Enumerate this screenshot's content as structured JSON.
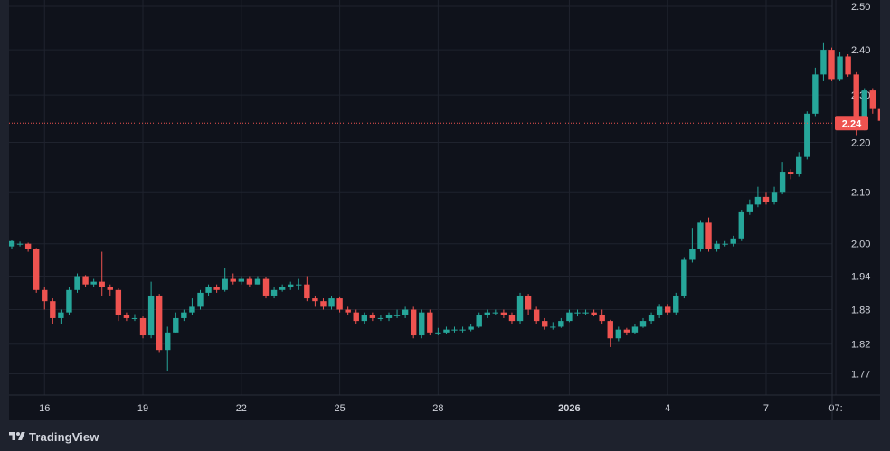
{
  "footer": {
    "brand": "TradingView",
    "logo_icon": "tradingview-logo-icon"
  },
  "colors": {
    "background": "#0f121b",
    "grid": "#1f232e",
    "up": "#26a69a",
    "down": "#ef5350",
    "text": "#d1d4dc",
    "price_line": "#ef5350"
  },
  "chart_data": {
    "type": "candlestick",
    "title": "",
    "last_price": 2.24,
    "last_price_label": "2.24",
    "y_scale": "log",
    "ylim": [
      1.735,
      2.515
    ],
    "y_ticks": [
      {
        "value": 2.5,
        "label": "2.50"
      },
      {
        "value": 2.4,
        "label": "2.40"
      },
      {
        "value": 2.3,
        "label": "2.30"
      },
      {
        "value": 2.2,
        "label": "2.20"
      },
      {
        "value": 2.1,
        "label": "2.10"
      },
      {
        "value": 2.0,
        "label": "2.00"
      },
      {
        "value": 1.94,
        "label": "1.94"
      },
      {
        "value": 1.88,
        "label": "1.88"
      },
      {
        "value": 1.82,
        "label": "1.82"
      },
      {
        "value": 1.77,
        "label": "1.77"
      }
    ],
    "x_ticks": [
      {
        "index": 4,
        "label": "16",
        "bold": false
      },
      {
        "index": 16,
        "label": "19",
        "bold": false
      },
      {
        "index": 28,
        "label": "22",
        "bold": false
      },
      {
        "index": 40,
        "label": "25",
        "bold": false
      },
      {
        "index": 52,
        "label": "28",
        "bold": false
      },
      {
        "index": 68,
        "label": "2026",
        "bold": true
      },
      {
        "index": 80,
        "label": "4",
        "bold": false
      },
      {
        "index": 92,
        "label": "7",
        "bold": false
      },
      {
        "index": 100.5,
        "label": "07:",
        "bold": false
      }
    ],
    "grid": true,
    "candles": [
      [
        1.995,
        2.005,
        2.008,
        1.99
      ],
      [
        2.0,
        2.0,
        2.004,
        1.995
      ],
      [
        2.0,
        1.99,
        2.002,
        1.985
      ],
      [
        1.99,
        1.915,
        1.992,
        1.91
      ],
      [
        1.915,
        1.895,
        1.92,
        1.88
      ],
      [
        1.895,
        1.865,
        1.9,
        1.855
      ],
      [
        1.865,
        1.875,
        1.88,
        1.855
      ],
      [
        1.875,
        1.915,
        1.92,
        1.87
      ],
      [
        1.915,
        1.94,
        1.945,
        1.91
      ],
      [
        1.94,
        1.925,
        1.942,
        1.92
      ],
      [
        1.925,
        1.93,
        1.935,
        1.92
      ],
      [
        1.93,
        1.92,
        1.985,
        1.905
      ],
      [
        1.92,
        1.915,
        1.925,
        1.905
      ],
      [
        1.915,
        1.87,
        1.918,
        1.86
      ],
      [
        1.87,
        1.865,
        1.875,
        1.86
      ],
      [
        1.865,
        1.865,
        1.872,
        1.86
      ],
      [
        1.865,
        1.835,
        1.868,
        1.83
      ],
      [
        1.835,
        1.905,
        1.93,
        1.83
      ],
      [
        1.905,
        1.81,
        1.908,
        1.805
      ],
      [
        1.81,
        1.84,
        1.85,
        1.775
      ],
      [
        1.84,
        1.865,
        1.875,
        1.84
      ],
      [
        1.865,
        1.875,
        1.88,
        1.86
      ],
      [
        1.875,
        1.885,
        1.9,
        1.87
      ],
      [
        1.885,
        1.91,
        1.915,
        1.88
      ],
      [
        1.91,
        1.92,
        1.925,
        1.905
      ],
      [
        1.92,
        1.915,
        1.925,
        1.91
      ],
      [
        1.915,
        1.935,
        1.955,
        1.912
      ],
      [
        1.935,
        1.93,
        1.945,
        1.925
      ],
      [
        1.93,
        1.935,
        1.94,
        1.925
      ],
      [
        1.935,
        1.925,
        1.94,
        1.92
      ],
      [
        1.925,
        1.935,
        1.94,
        1.925
      ],
      [
        1.935,
        1.905,
        1.938,
        1.9
      ],
      [
        1.905,
        1.915,
        1.92,
        1.9
      ],
      [
        1.915,
        1.92,
        1.925,
        1.912
      ],
      [
        1.92,
        1.925,
        1.93,
        1.915
      ],
      [
        1.925,
        1.925,
        1.935,
        1.915
      ],
      [
        1.925,
        1.9,
        1.94,
        1.895
      ],
      [
        1.9,
        1.895,
        1.905,
        1.885
      ],
      [
        1.895,
        1.885,
        1.9,
        1.88
      ],
      [
        1.885,
        1.9,
        1.905,
        1.88
      ],
      [
        1.9,
        1.88,
        1.902,
        1.875
      ],
      [
        1.88,
        1.875,
        1.885,
        1.87
      ],
      [
        1.875,
        1.86,
        1.88,
        1.855
      ],
      [
        1.86,
        1.87,
        1.875,
        1.855
      ],
      [
        1.87,
        1.865,
        1.875,
        1.86
      ],
      [
        1.865,
        1.865,
        1.87,
        1.86
      ],
      [
        1.865,
        1.87,
        1.875,
        1.86
      ],
      [
        1.87,
        1.87,
        1.88,
        1.865
      ],
      [
        1.87,
        1.88,
        1.885,
        1.865
      ],
      [
        1.88,
        1.835,
        1.885,
        1.83
      ],
      [
        1.835,
        1.875,
        1.88,
        1.83
      ],
      [
        1.875,
        1.84,
        1.88,
        1.835
      ],
      [
        1.84,
        1.84,
        1.848,
        1.835
      ],
      [
        1.84,
        1.845,
        1.85,
        1.838
      ],
      [
        1.845,
        1.845,
        1.85,
        1.84
      ],
      [
        1.845,
        1.845,
        1.85,
        1.84
      ],
      [
        1.845,
        1.85,
        1.855,
        1.842
      ],
      [
        1.85,
        1.87,
        1.875,
        1.848
      ],
      [
        1.87,
        1.875,
        1.88,
        1.865
      ],
      [
        1.875,
        1.875,
        1.88,
        1.87
      ],
      [
        1.875,
        1.87,
        1.88,
        1.865
      ],
      [
        1.87,
        1.86,
        1.875,
        1.855
      ],
      [
        1.86,
        1.905,
        1.91,
        1.855
      ],
      [
        1.905,
        1.88,
        1.908,
        1.87
      ],
      [
        1.88,
        1.86,
        1.885,
        1.855
      ],
      [
        1.86,
        1.85,
        1.865,
        1.845
      ],
      [
        1.85,
        1.85,
        1.858,
        1.845
      ],
      [
        1.85,
        1.86,
        1.865,
        1.848
      ],
      [
        1.86,
        1.875,
        1.88,
        1.858
      ],
      [
        1.875,
        1.875,
        1.88,
        1.868
      ],
      [
        1.875,
        1.875,
        1.88,
        1.87
      ],
      [
        1.875,
        1.87,
        1.88,
        1.868
      ],
      [
        1.87,
        1.86,
        1.88,
        1.855
      ],
      [
        1.86,
        1.83,
        1.862,
        1.815
      ],
      [
        1.83,
        1.845,
        1.85,
        1.825
      ],
      [
        1.845,
        1.84,
        1.848,
        1.835
      ],
      [
        1.84,
        1.85,
        1.855,
        1.838
      ],
      [
        1.85,
        1.86,
        1.865,
        1.848
      ],
      [
        1.86,
        1.87,
        1.875,
        1.855
      ],
      [
        1.87,
        1.885,
        1.89,
        1.865
      ],
      [
        1.885,
        1.875,
        1.89,
        1.87
      ],
      [
        1.875,
        1.905,
        1.91,
        1.87
      ],
      [
        1.905,
        1.97,
        1.975,
        1.9
      ],
      [
        1.97,
        1.99,
        2.03,
        1.965
      ],
      [
        1.99,
        2.04,
        2.045,
        1.985
      ],
      [
        2.04,
        1.99,
        2.05,
        1.985
      ],
      [
        1.99,
        2.0,
        2.005,
        1.985
      ],
      [
        2.0,
        2.0,
        2.005,
        1.995
      ],
      [
        2.0,
        2.01,
        2.015,
        1.995
      ],
      [
        2.01,
        2.06,
        2.065,
        2.005
      ],
      [
        2.06,
        2.075,
        2.085,
        2.055
      ],
      [
        2.075,
        2.09,
        2.11,
        2.07
      ],
      [
        2.09,
        2.08,
        2.1,
        2.075
      ],
      [
        2.08,
        2.1,
        2.11,
        2.075
      ],
      [
        2.1,
        2.14,
        2.16,
        2.095
      ],
      [
        2.14,
        2.135,
        2.145,
        2.125
      ],
      [
        2.135,
        2.17,
        2.18,
        2.13
      ],
      [
        2.17,
        2.26,
        2.265,
        2.165
      ],
      [
        2.26,
        2.345,
        2.36,
        2.255
      ],
      [
        2.345,
        2.4,
        2.415,
        2.33
      ]
    ],
    "candles_tail": [
      [
        2.4,
        2.335,
        2.405,
        2.33
      ],
      [
        2.335,
        2.385,
        2.395,
        2.33
      ],
      [
        2.385,
        2.345,
        2.39,
        2.34
      ],
      [
        2.345,
        2.23,
        2.35,
        2.215
      ],
      [
        2.23,
        2.31,
        2.315,
        2.225
      ],
      [
        2.31,
        2.27,
        2.315,
        2.26
      ],
      [
        2.27,
        2.245,
        2.285,
        2.24
      ],
      [
        2.245,
        2.24,
        2.25,
        2.235
      ]
    ]
  }
}
